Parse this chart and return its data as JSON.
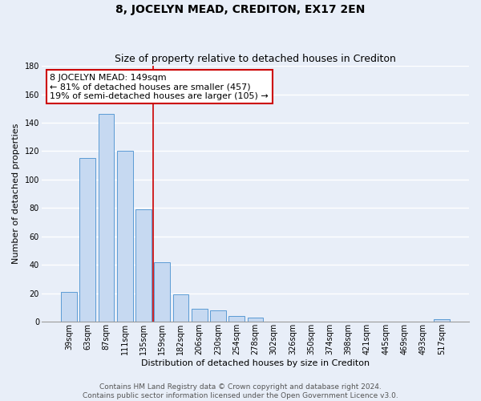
{
  "title": "8, JOCELYN MEAD, CREDITON, EX17 2EN",
  "subtitle": "Size of property relative to detached houses in Crediton",
  "xlabel": "Distribution of detached houses by size in Crediton",
  "ylabel": "Number of detached properties",
  "bar_labels": [
    "39sqm",
    "63sqm",
    "87sqm",
    "111sqm",
    "135sqm",
    "159sqm",
    "182sqm",
    "206sqm",
    "230sqm",
    "254sqm",
    "278sqm",
    "302sqm",
    "326sqm",
    "350sqm",
    "374sqm",
    "398sqm",
    "421sqm",
    "445sqm",
    "469sqm",
    "493sqm",
    "517sqm"
  ],
  "bar_values": [
    21,
    115,
    146,
    120,
    79,
    42,
    19,
    9,
    8,
    4,
    3,
    0,
    0,
    0,
    0,
    0,
    0,
    0,
    0,
    0,
    2
  ],
  "bar_color": "#c6d9f1",
  "bar_edge_color": "#5b9bd5",
  "vline_x": 4.5,
  "vline_color": "#cc0000",
  "annotation_title": "8 JOCELYN MEAD: 149sqm",
  "annotation_line1": "← 81% of detached houses are smaller (457)",
  "annotation_line2": "19% of semi-detached houses are larger (105) →",
  "annotation_box_color": "#ffffff",
  "annotation_box_edge": "#cc0000",
  "ylim": [
    0,
    180
  ],
  "yticks": [
    0,
    20,
    40,
    60,
    80,
    100,
    120,
    140,
    160,
    180
  ],
  "footer1": "Contains HM Land Registry data © Crown copyright and database right 2024.",
  "footer2": "Contains public sector information licensed under the Open Government Licence v3.0.",
  "bg_color": "#e8eef8",
  "plot_bg_color": "#e8eef8",
  "grid_color": "#ffffff",
  "title_fontsize": 10,
  "subtitle_fontsize": 9,
  "label_fontsize": 8,
  "tick_fontsize": 7,
  "annotation_fontsize": 8,
  "footer_fontsize": 6.5
}
